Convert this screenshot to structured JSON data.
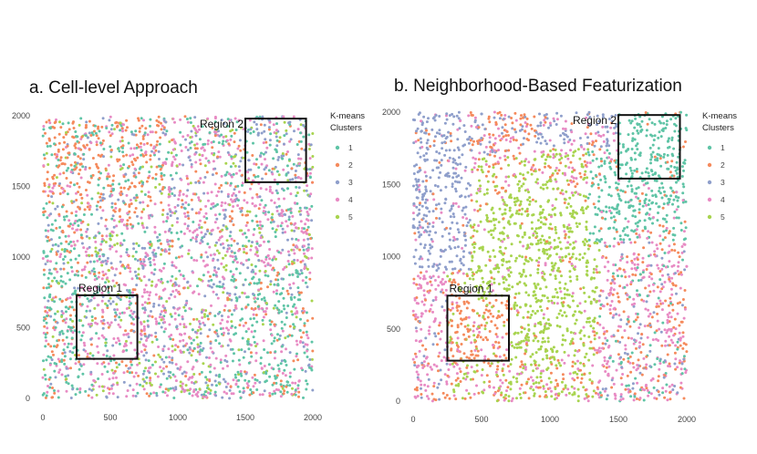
{
  "chart_data": [
    {
      "type": "scatter",
      "title": "a. Cell-level Approach",
      "xlim": [
        0,
        2000
      ],
      "ylim": [
        0,
        2000
      ],
      "xticks": [
        0,
        500,
        1000,
        1500,
        2000
      ],
      "yticks": [
        0,
        500,
        1000,
        1500,
        2000
      ],
      "legend_title": [
        "K-means",
        "Clusters"
      ],
      "legend_position": "right",
      "series": [
        {
          "name": "1",
          "color": "#5fc4a6"
        },
        {
          "name": "2",
          "color": "#f58a5c"
        },
        {
          "name": "3",
          "color": "#8f9fcb"
        },
        {
          "name": "4",
          "color": "#e88bc4"
        },
        {
          "name": "5",
          "color": "#a8d44f"
        }
      ],
      "regions": [
        {
          "label": "Region 1",
          "x": [
            250,
            700
          ],
          "y": [
            280,
            730
          ]
        },
        {
          "label": "Region 2",
          "x": [
            1500,
            1950
          ],
          "y": [
            1530,
            1980
          ]
        }
      ]
    },
    {
      "type": "scatter",
      "title": "b. Neighborhood-Based Featurization",
      "xlim": [
        0,
        2000
      ],
      "ylim": [
        0,
        2000
      ],
      "xticks": [
        0,
        500,
        1000,
        1500,
        2000
      ],
      "yticks": [
        0,
        500,
        1000,
        1500,
        2000
      ],
      "legend_title": [
        "K-means",
        "Clusters"
      ],
      "legend_position": "right",
      "series": [
        {
          "name": "1",
          "color": "#5fc4a6"
        },
        {
          "name": "2",
          "color": "#f58a5c"
        },
        {
          "name": "3",
          "color": "#8f9fcb"
        },
        {
          "name": "4",
          "color": "#e88bc4"
        },
        {
          "name": "5",
          "color": "#a8d44f"
        }
      ],
      "regions": [
        {
          "label": "Region 1",
          "x": [
            250,
            700
          ],
          "y": [
            280,
            730
          ]
        },
        {
          "label": "Region 2",
          "x": [
            1500,
            1950
          ],
          "y": [
            1540,
            1980
          ]
        }
      ]
    }
  ]
}
